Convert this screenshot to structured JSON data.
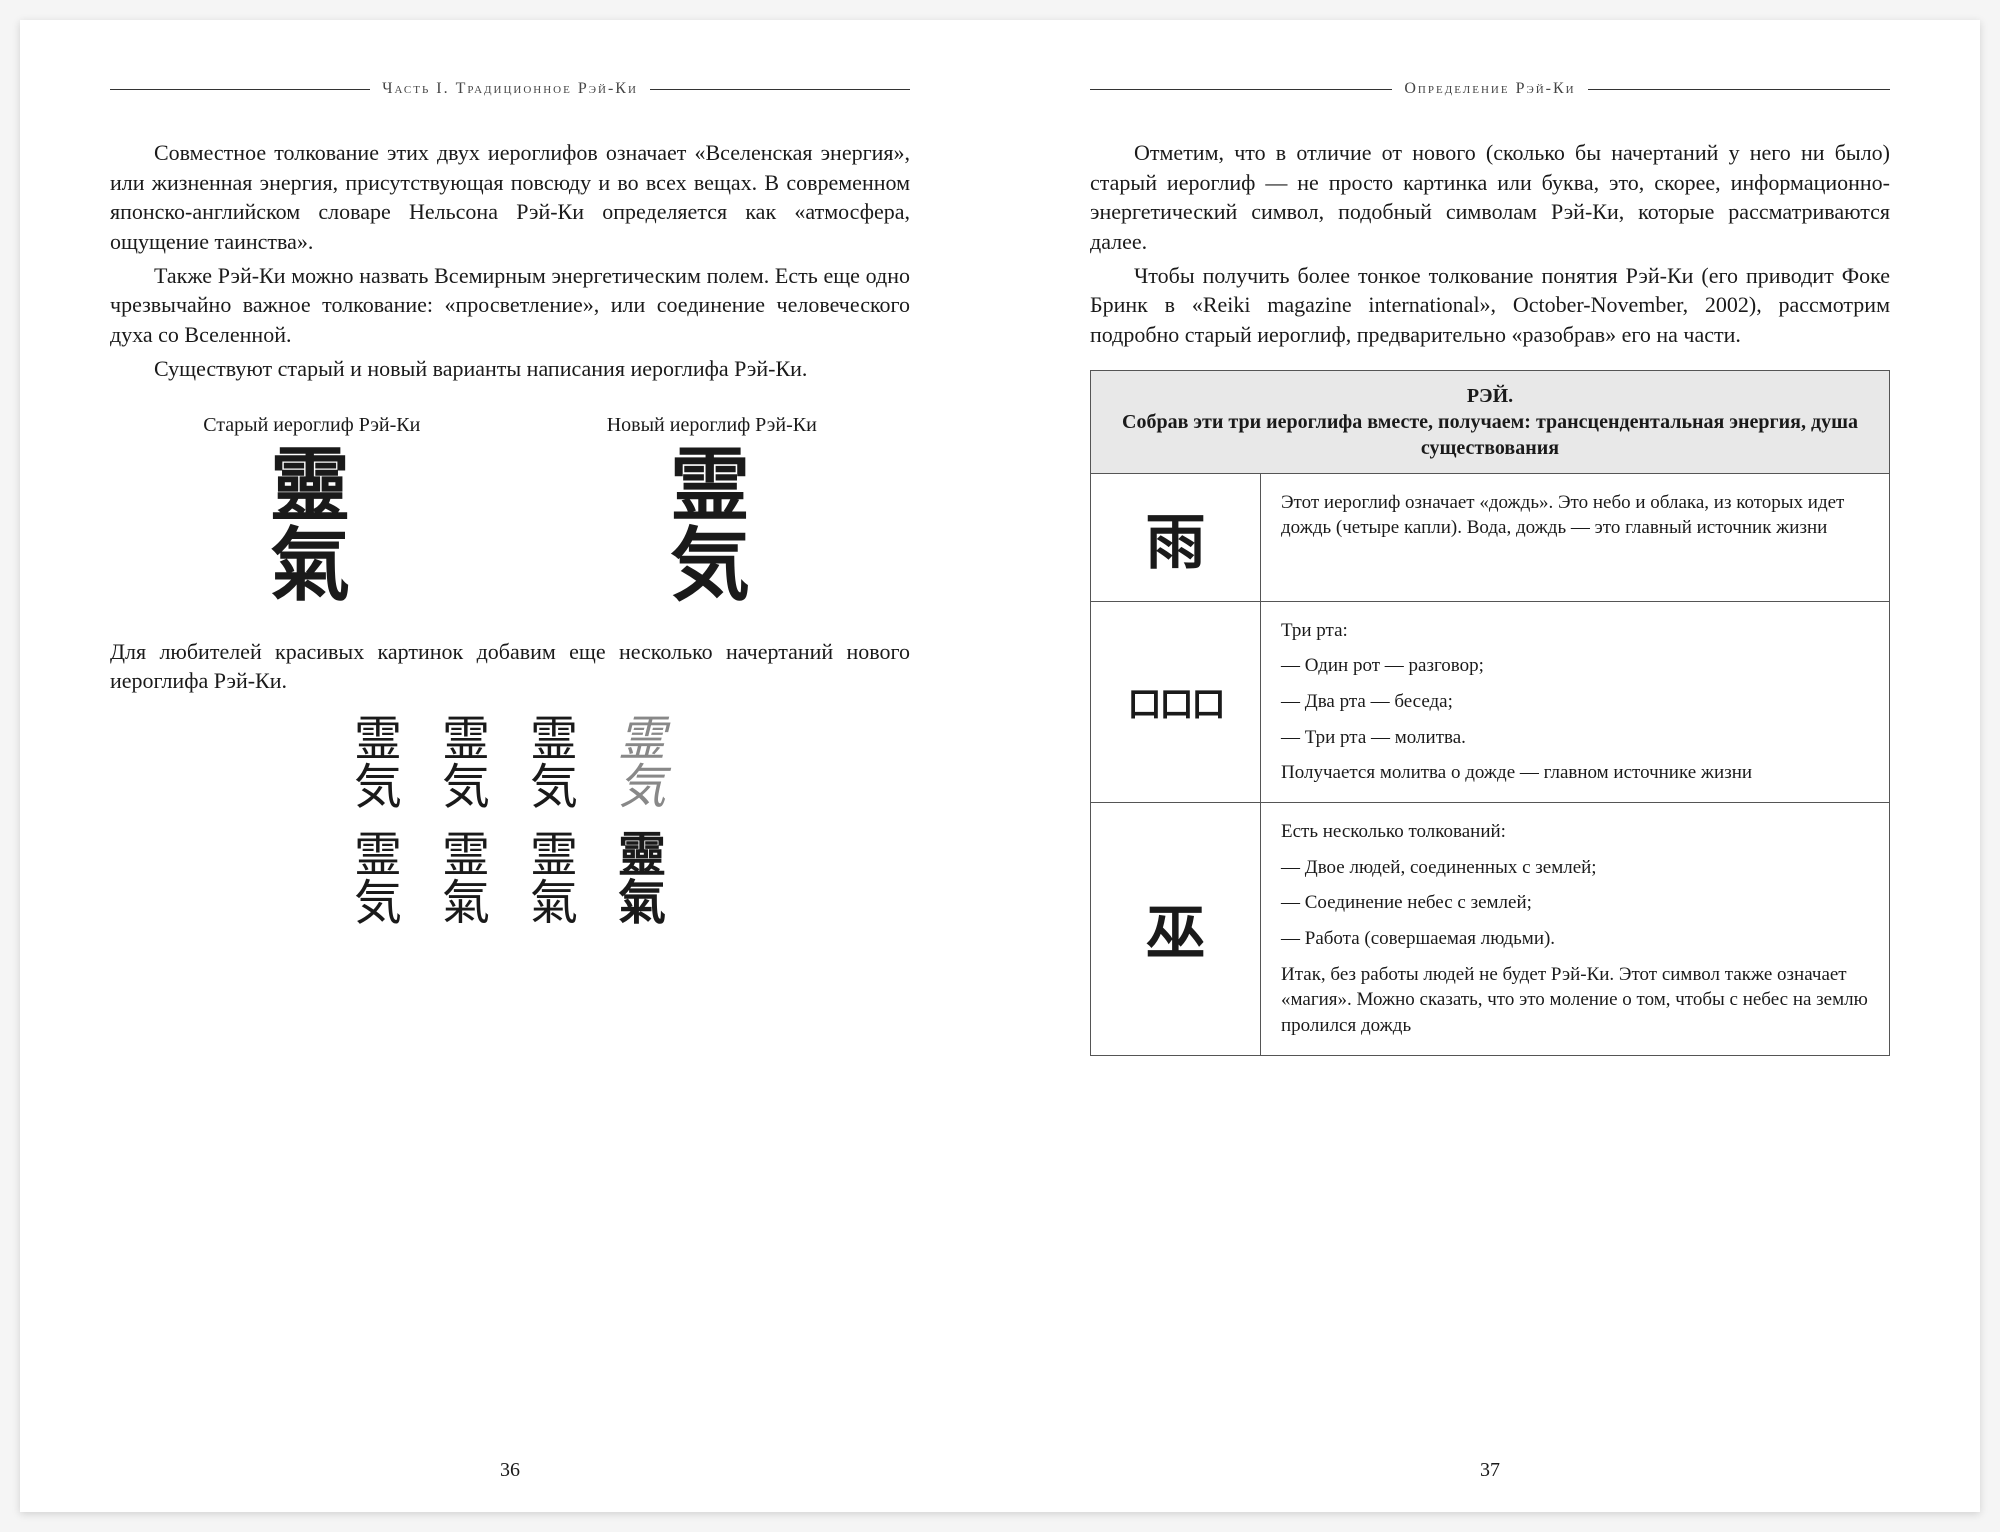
{
  "leftPage": {
    "header": "Часть I. Традиционное Рэй-Ки",
    "para1": "Совместное толкование этих двух иероглифов означает «Вселенская энергия», или жизненная энергия, присутствующая повсюду и во всех вещах. В современном японско-английском словаре Нельсона Рэй-Ки определяется как «атмосфера, ощущение таинства».",
    "para2": "Также Рэй-Ки можно назвать Всемирным энергетическим полем. Есть еще одно чрезвычайно важное толкование: «просветление», или соединение человеческого духа со Вселенной.",
    "para3": "Существуют старый и новый варианты написания иероглифа Рэй-Ки.",
    "labelOld": "Старый иероглиф Рэй-Ки",
    "labelNew": "Новый иероглиф Рэй-Ки",
    "glyphOld": "靈\n氣",
    "glyphNew": "霊\n気",
    "para4": "Для любителей красивых картинок добавим еще несколько начертаний нового иероглифа Рэй-Ки.",
    "variants": {
      "r1c1": "霊\n気",
      "r1c2": "霊\n気",
      "r1c3": "霊\n気",
      "r1c4": "霊\n気",
      "r2c1": "霊\n気",
      "r2c2": "霊\n氣",
      "r2c3": "霊\n氣",
      "r2c4": "靈\n氣"
    },
    "pageNum": "36"
  },
  "rightPage": {
    "header": "Определение Рэй-Ки",
    "para1": "Отметим, что в отличие от нового (сколько бы начертаний у него ни было) старый иероглиф — не просто картинка или буква, это, скорее, информационно-энергетический символ, подобный символам Рэй-Ки, которые рассматриваются далее.",
    "para2": "Чтобы получить более тонкое толкование понятия Рэй-Ки (его приводит Фоке Бринк в «Reiki magazine international», October-November, 2002), рассмотрим подробно старый иероглиф, предварительно «разобрав» его на части.",
    "table": {
      "title": "РЭЙ.",
      "subtitle": "Собрав эти три иероглифа вместе, получаем: трансцендентальная энергия, душа существования",
      "rows": [
        {
          "glyph": "雨",
          "desc": "Этот иероглиф означает «дождь». Это небо и облака, из которых идет дождь (четыре капли). Вода, дождь — это главный источник жизни"
        },
        {
          "glyph": "口口口",
          "descA": "Три рта:",
          "descB": "— Один рот — разговор;",
          "descC": "— Два рта — беседа;",
          "descD": "— Три рта — молитва.",
          "descE": "Получается молитва о дожде — главном источнике жизни"
        },
        {
          "glyph": "巫",
          "descA": "Есть несколько толкований:",
          "descB": "— Двое людей, соединенных с землей;",
          "descC": "— Соединение небес с землей;",
          "descD": "— Работа (совершаемая людьми).",
          "descE": "Итак, без работы людей не будет Рэй-Ки. Этот символ также означает «магия». Можно сказать, что это моление о том, чтобы с небес на землю пролился дождь"
        }
      ]
    },
    "pageNum": "37"
  }
}
